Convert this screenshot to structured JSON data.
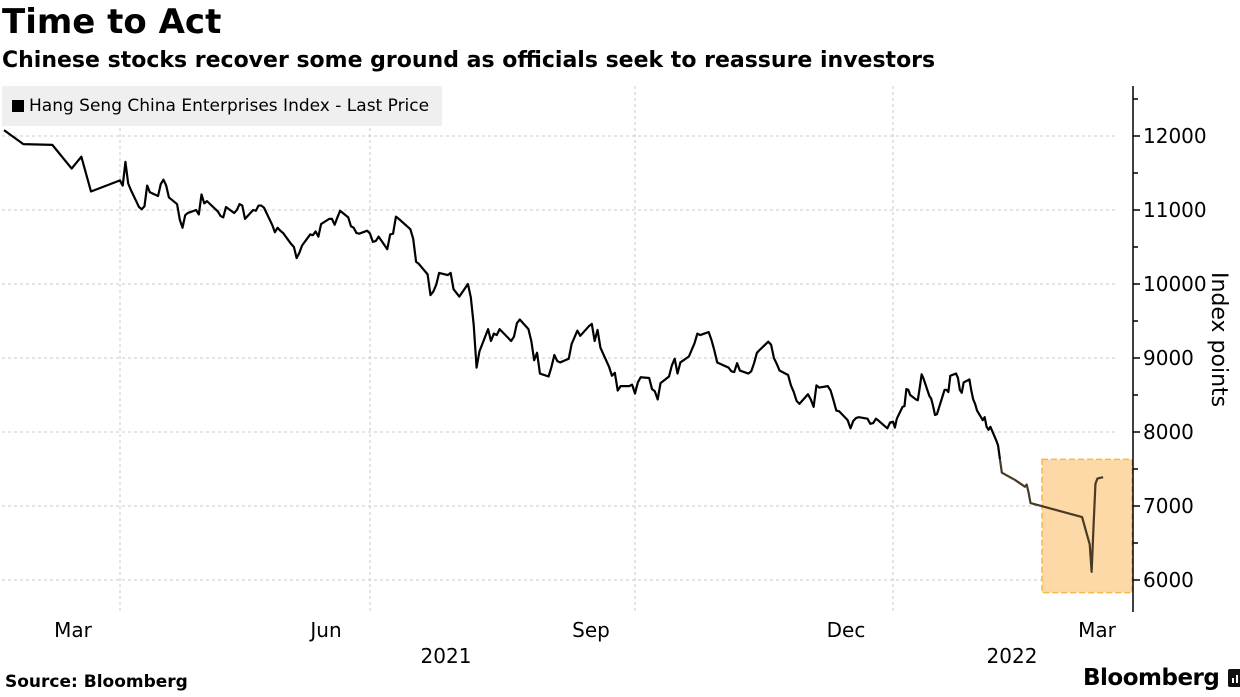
{
  "header": {
    "title": "Time to Act",
    "subtitle": "Chinese stocks recover some ground as officials seek to reassure investors"
  },
  "footer": {
    "source": "Source: Bloomberg",
    "brand": "Bloomberg",
    "brand_icon": "bloomberg-chart-logo-icon"
  },
  "chart_data": {
    "type": "line",
    "title": "Time to Act",
    "subtitle": "Chinese stocks recover some ground as officials seek to reassure investors",
    "xlabel": "",
    "ylabel": "Index points",
    "ylim": [
      5600,
      12700
    ],
    "yticks": [
      6000,
      7000,
      8000,
      9000,
      10000,
      11000,
      12000
    ],
    "ytick_labels": [
      "6000",
      "7000",
      "8000",
      "9000",
      "10000",
      "11000",
      "12000"
    ],
    "y_axis_side": "right",
    "grid": true,
    "legend_position": "top-left",
    "x_range": [
      "2021-02-17",
      "2022-03-22"
    ],
    "xticks": [
      {
        "date": "2021-03-01",
        "label": "Mar"
      },
      {
        "date": "2021-06-01",
        "label": "Jun"
      },
      {
        "date": "2021-09-01",
        "label": "Sep"
      },
      {
        "date": "2021-12-01",
        "label": "Dec"
      },
      {
        "date": "2022-03-01",
        "label": "Mar"
      }
    ],
    "year_labels": [
      {
        "date": "2021-07-15",
        "label": "2021"
      },
      {
        "date": "2022-01-31",
        "label": "2022"
      }
    ],
    "highlight": {
      "description": "recent plunge and rebound",
      "x_from": "2022-02-24",
      "x_to": "2022-03-22",
      "y_from": 5830,
      "y_to": 7630,
      "fill": "#fcd9a6",
      "border": "#f5b94a"
    },
    "series": [
      {
        "name": "Hang Seng China Enterprises Index - Last Price",
        "color": "#000000",
        "highlight_color": "#4a3a25",
        "points": [
          [
            "2021-02-17",
            12080
          ],
          [
            "2021-02-19",
            11890
          ],
          [
            "2021-02-22",
            11880
          ],
          [
            "2021-02-24",
            11560
          ],
          [
            "2021-02-25",
            11720
          ],
          [
            "2021-02-26",
            11250
          ],
          [
            "2021-03-01",
            11400
          ],
          [
            "2021-03-02",
            11330
          ],
          [
            "2021-03-03",
            11650
          ],
          [
            "2021-03-04",
            11360
          ],
          [
            "2021-03-05",
            11270
          ],
          [
            "2021-03-08",
            11040
          ],
          [
            "2021-03-09",
            11010
          ],
          [
            "2021-03-10",
            11050
          ],
          [
            "2021-03-11",
            11330
          ],
          [
            "2021-03-12",
            11240
          ],
          [
            "2021-03-15",
            11190
          ],
          [
            "2021-03-16",
            11350
          ],
          [
            "2021-03-17",
            11410
          ],
          [
            "2021-03-18",
            11330
          ],
          [
            "2021-03-19",
            11170
          ],
          [
            "2021-03-22",
            11080
          ],
          [
            "2021-03-23",
            10870
          ],
          [
            "2021-03-24",
            10760
          ],
          [
            "2021-03-25",
            10930
          ],
          [
            "2021-03-26",
            10960
          ],
          [
            "2021-03-29",
            11000
          ],
          [
            "2021-03-30",
            10940
          ],
          [
            "2021-03-31",
            11210
          ],
          [
            "2021-04-01",
            11090
          ],
          [
            "2021-04-02",
            11120
          ],
          [
            "2021-04-06",
            10980
          ],
          [
            "2021-04-07",
            10920
          ],
          [
            "2021-04-08",
            10900
          ],
          [
            "2021-04-09",
            11040
          ],
          [
            "2021-04-12",
            10960
          ],
          [
            "2021-04-13",
            11000
          ],
          [
            "2021-04-14",
            11080
          ],
          [
            "2021-04-15",
            11060
          ],
          [
            "2021-04-16",
            10880
          ],
          [
            "2021-04-19",
            11000
          ],
          [
            "2021-04-20",
            10990
          ],
          [
            "2021-04-21",
            11060
          ],
          [
            "2021-04-22",
            11060
          ],
          [
            "2021-04-23",
            11030
          ],
          [
            "2021-04-26",
            10800
          ],
          [
            "2021-04-27",
            10700
          ],
          [
            "2021-04-28",
            10760
          ],
          [
            "2021-04-29",
            10720
          ],
          [
            "2021-04-30",
            10690
          ],
          [
            "2021-05-03",
            10540
          ],
          [
            "2021-05-04",
            10500
          ],
          [
            "2021-05-05",
            10350
          ],
          [
            "2021-05-06",
            10420
          ],
          [
            "2021-05-07",
            10520
          ],
          [
            "2021-05-10",
            10670
          ],
          [
            "2021-05-11",
            10660
          ],
          [
            "2021-05-12",
            10710
          ],
          [
            "2021-05-13",
            10640
          ],
          [
            "2021-05-14",
            10810
          ],
          [
            "2021-05-17",
            10880
          ],
          [
            "2021-05-18",
            10880
          ],
          [
            "2021-05-19",
            10800
          ],
          [
            "2021-05-20",
            10900
          ],
          [
            "2021-05-21",
            10990
          ],
          [
            "2021-05-24",
            10900
          ],
          [
            "2021-05-25",
            10780
          ],
          [
            "2021-05-26",
            10760
          ],
          [
            "2021-05-27",
            10690
          ],
          [
            "2021-05-28",
            10680
          ],
          [
            "2021-05-31",
            10720
          ],
          [
            "2021-06-01",
            10680
          ],
          [
            "2021-06-02",
            10570
          ],
          [
            "2021-06-03",
            10580
          ],
          [
            "2021-06-04",
            10640
          ],
          [
            "2021-06-07",
            10470
          ],
          [
            "2021-06-08",
            10670
          ],
          [
            "2021-06-09",
            10680
          ],
          [
            "2021-06-10",
            10910
          ],
          [
            "2021-06-11",
            10880
          ],
          [
            "2021-06-15",
            10740
          ],
          [
            "2021-06-16",
            10610
          ],
          [
            "2021-06-17",
            10300
          ],
          [
            "2021-06-18",
            10270
          ],
          [
            "2021-06-21",
            10130
          ],
          [
            "2021-06-22",
            9850
          ],
          [
            "2021-06-23",
            9900
          ],
          [
            "2021-06-24",
            9990
          ],
          [
            "2021-06-25",
            10150
          ],
          [
            "2021-06-28",
            10120
          ],
          [
            "2021-06-29",
            10150
          ],
          [
            "2021-06-30",
            9930
          ],
          [
            "2021-07-02",
            9830
          ],
          [
            "2021-07-05",
            10000
          ],
          [
            "2021-07-06",
            9820
          ],
          [
            "2021-07-07",
            9450
          ],
          [
            "2021-07-08",
            8870
          ],
          [
            "2021-07-09",
            9090
          ],
          [
            "2021-07-12",
            9390
          ],
          [
            "2021-07-13",
            9230
          ],
          [
            "2021-07-14",
            9330
          ],
          [
            "2021-07-15",
            9310
          ],
          [
            "2021-07-16",
            9390
          ],
          [
            "2021-07-19",
            9270
          ],
          [
            "2021-07-20",
            9230
          ],
          [
            "2021-07-21",
            9290
          ],
          [
            "2021-07-22",
            9470
          ],
          [
            "2021-07-23",
            9520
          ],
          [
            "2021-07-26",
            9390
          ],
          [
            "2021-07-27",
            9230
          ],
          [
            "2021-07-28",
            8970
          ],
          [
            "2021-07-29",
            9070
          ],
          [
            "2021-07-30",
            8790
          ],
          [
            "2021-08-02",
            8750
          ],
          [
            "2021-08-03",
            8880
          ],
          [
            "2021-08-04",
            9040
          ],
          [
            "2021-08-05",
            8960
          ],
          [
            "2021-08-06",
            8940
          ],
          [
            "2021-08-09",
            8990
          ],
          [
            "2021-08-10",
            9190
          ],
          [
            "2021-08-11",
            9280
          ],
          [
            "2021-08-12",
            9370
          ],
          [
            "2021-08-13",
            9300
          ],
          [
            "2021-08-16",
            9430
          ],
          [
            "2021-08-17",
            9460
          ],
          [
            "2021-08-18",
            9230
          ],
          [
            "2021-08-19",
            9380
          ],
          [
            "2021-08-20",
            9140
          ],
          [
            "2021-08-23",
            8880
          ],
          [
            "2021-08-24",
            8760
          ],
          [
            "2021-08-25",
            8800
          ],
          [
            "2021-08-26",
            8560
          ],
          [
            "2021-08-27",
            8620
          ],
          [
            "2021-08-30",
            8620
          ],
          [
            "2021-08-31",
            8640
          ],
          [
            "2021-09-01",
            8520
          ],
          [
            "2021-09-02",
            8670
          ],
          [
            "2021-09-03",
            8740
          ],
          [
            "2021-09-06",
            8730
          ],
          [
            "2021-09-07",
            8580
          ],
          [
            "2021-09-08",
            8550
          ],
          [
            "2021-09-09",
            8440
          ],
          [
            "2021-09-10",
            8660
          ],
          [
            "2021-09-13",
            8750
          ],
          [
            "2021-09-14",
            8900
          ],
          [
            "2021-09-15",
            8990
          ],
          [
            "2021-09-16",
            8790
          ],
          [
            "2021-09-17",
            8940
          ],
          [
            "2021-09-20",
            9020
          ],
          [
            "2021-09-22",
            9200
          ],
          [
            "2021-09-23",
            9330
          ],
          [
            "2021-09-24",
            9310
          ],
          [
            "2021-09-27",
            9350
          ],
          [
            "2021-09-28",
            9240
          ],
          [
            "2021-09-29",
            9100
          ],
          [
            "2021-09-30",
            8940
          ],
          [
            "2021-10-04",
            8870
          ],
          [
            "2021-10-05",
            8820
          ],
          [
            "2021-10-06",
            8810
          ],
          [
            "2021-10-07",
            8930
          ],
          [
            "2021-10-08",
            8830
          ],
          [
            "2021-10-11",
            8790
          ],
          [
            "2021-10-12",
            8820
          ],
          [
            "2021-10-13",
            8930
          ],
          [
            "2021-10-14",
            9070
          ],
          [
            "2021-10-15",
            9110
          ],
          [
            "2021-10-18",
            9220
          ],
          [
            "2021-10-19",
            9180
          ],
          [
            "2021-10-20",
            9000
          ],
          [
            "2021-10-21",
            8920
          ],
          [
            "2021-10-22",
            8830
          ],
          [
            "2021-10-25",
            8770
          ],
          [
            "2021-10-26",
            8630
          ],
          [
            "2021-10-27",
            8540
          ],
          [
            "2021-10-28",
            8420
          ],
          [
            "2021-10-29",
            8380
          ],
          [
            "2021-11-01",
            8510
          ],
          [
            "2021-11-02",
            8440
          ],
          [
            "2021-11-03",
            8340
          ],
          [
            "2021-11-04",
            8630
          ],
          [
            "2021-11-05",
            8600
          ],
          [
            "2021-11-08",
            8620
          ],
          [
            "2021-11-09",
            8560
          ],
          [
            "2021-11-10",
            8430
          ],
          [
            "2021-11-11",
            8290
          ],
          [
            "2021-11-12",
            8280
          ],
          [
            "2021-11-15",
            8160
          ],
          [
            "2021-11-16",
            8050
          ],
          [
            "2021-11-17",
            8150
          ],
          [
            "2021-11-18",
            8190
          ],
          [
            "2021-11-19",
            8200
          ],
          [
            "2021-11-22",
            8180
          ],
          [
            "2021-11-23",
            8110
          ],
          [
            "2021-11-24",
            8120
          ],
          [
            "2021-11-25",
            8180
          ],
          [
            "2021-11-26",
            8150
          ],
          [
            "2021-11-29",
            8050
          ],
          [
            "2021-11-30",
            8130
          ],
          [
            "2021-12-01",
            8140
          ],
          [
            "2021-12-02",
            8060
          ],
          [
            "2021-12-03",
            8180
          ],
          [
            "2021-12-06",
            8340
          ],
          [
            "2021-12-07",
            8350
          ],
          [
            "2021-12-08",
            8580
          ],
          [
            "2021-12-09",
            8570
          ],
          [
            "2021-12-10",
            8500
          ],
          [
            "2021-12-13",
            8440
          ],
          [
            "2021-12-14",
            8430
          ],
          [
            "2021-12-15",
            8600
          ],
          [
            "2021-12-16",
            8780
          ],
          [
            "2021-12-17",
            8720
          ],
          [
            "2021-12-20",
            8490
          ],
          [
            "2021-12-21",
            8450
          ],
          [
            "2021-12-22",
            8350
          ],
          [
            "2021-12-23",
            8230
          ],
          [
            "2021-12-24",
            8240
          ],
          [
            "2021-12-28",
            8570
          ],
          [
            "2021-12-29",
            8570
          ],
          [
            "2021-12-30",
            8540
          ],
          [
            "2021-12-31",
            8760
          ],
          [
            "2022-01-03",
            8790
          ],
          [
            "2022-01-04",
            8730
          ],
          [
            "2022-01-05",
            8570
          ],
          [
            "2022-01-06",
            8530
          ],
          [
            "2022-01-07",
            8670
          ],
          [
            "2022-01-10",
            8710
          ],
          [
            "2022-01-11",
            8560
          ],
          [
            "2022-01-12",
            8440
          ],
          [
            "2022-01-13",
            8380
          ],
          [
            "2022-01-14",
            8290
          ],
          [
            "2022-01-17",
            8160
          ],
          [
            "2022-01-18",
            8200
          ],
          [
            "2022-01-19",
            8070
          ],
          [
            "2022-01-20",
            8030
          ],
          [
            "2022-01-21",
            8070
          ],
          [
            "2022-01-24",
            7890
          ],
          [
            "2022-01-25",
            7820
          ],
          [
            "2022-01-26",
            7630
          ],
          [
            "2022-01-27",
            7450
          ],
          [
            "2022-02-03",
            7350
          ],
          [
            "2022-02-07",
            7280
          ],
          [
            "2022-02-08",
            7260
          ],
          [
            "2022-02-09",
            7290
          ],
          [
            "2022-02-10",
            7180
          ],
          [
            "2022-02-11",
            7040
          ],
          [
            "2022-03-10",
            6850
          ],
          [
            "2022-03-14",
            6480
          ],
          [
            "2022-03-15",
            6110
          ],
          [
            "2022-03-16",
            6730
          ],
          [
            "2022-03-17",
            7300
          ],
          [
            "2022-03-18",
            7370
          ],
          [
            "2022-03-21",
            7390
          ]
        ]
      }
    ]
  }
}
